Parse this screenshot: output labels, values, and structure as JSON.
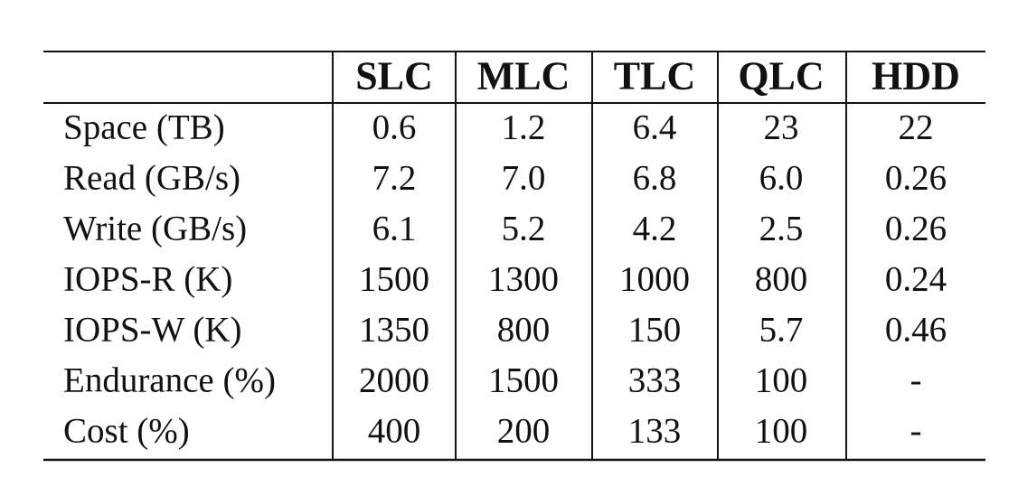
{
  "table": {
    "columns": [
      "SLC",
      "MLC",
      "TLC",
      "QLC",
      "HDD"
    ],
    "rows": [
      {
        "label": "Space (TB)",
        "cells": [
          "0.6",
          "1.2",
          "6.4",
          "23",
          "22"
        ]
      },
      {
        "label": "Read (GB/s)",
        "cells": [
          "7.2",
          "7.0",
          "6.8",
          "6.0",
          "0.26"
        ]
      },
      {
        "label": "Write (GB/s)",
        "cells": [
          "6.1",
          "5.2",
          "4.2",
          "2.5",
          "0.26"
        ]
      },
      {
        "label": "IOPS-R (K)",
        "cells": [
          "1500",
          "1300",
          "1000",
          "800",
          "0.24"
        ]
      },
      {
        "label": "IOPS-W (K)",
        "cells": [
          "1350",
          "800",
          "150",
          "5.7",
          "0.46"
        ]
      },
      {
        "label": "Endurance (%)",
        "cells": [
          "2000",
          "1500",
          "333",
          "100",
          "-"
        ]
      },
      {
        "label": "Cost (%)",
        "cells": [
          "400",
          "200",
          "133",
          "100",
          "-"
        ]
      }
    ]
  }
}
